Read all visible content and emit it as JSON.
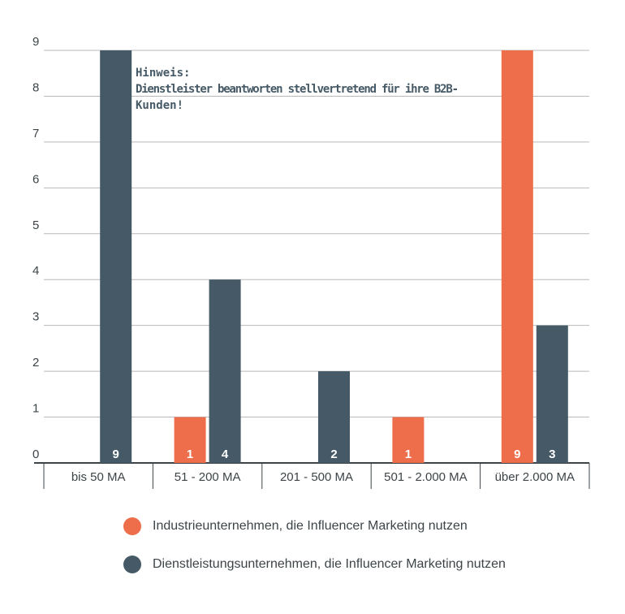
{
  "chart_data": {
    "type": "bar",
    "categories": [
      "bis 50 MA",
      "51 - 200 MA",
      "201 - 500 MA",
      "501 - 2.000 MA",
      "über 2.000 MA"
    ],
    "series": [
      {
        "name": "Industrieunternehmen, die Influencer Marketing nutzen",
        "color": "#ee6d4a",
        "values": [
          0,
          1,
          0,
          1,
          9
        ],
        "value_labels": [
          "",
          "1",
          "",
          "1",
          "9"
        ]
      },
      {
        "name": "Dienstleistungsunternehmen, die Influencer Marketing nutzen",
        "color": "#455a66",
        "values": [
          9,
          4,
          2,
          0,
          3
        ],
        "value_labels": [
          "9",
          "4",
          "2",
          "",
          "3"
        ]
      }
    ],
    "yticks": [
      "0",
      "1",
      "2",
      "3",
      "4",
      "5",
      "6",
      "7",
      "8",
      "9"
    ],
    "ylim": [
      0,
      9
    ],
    "grid": true,
    "legend_position": "bottom",
    "annotation": {
      "lines": [
        "Hinweis:",
        "Dienstleister beantworten stellvertretend für ihre B2B-",
        "Kunden!"
      ],
      "color": "#455a66"
    }
  }
}
